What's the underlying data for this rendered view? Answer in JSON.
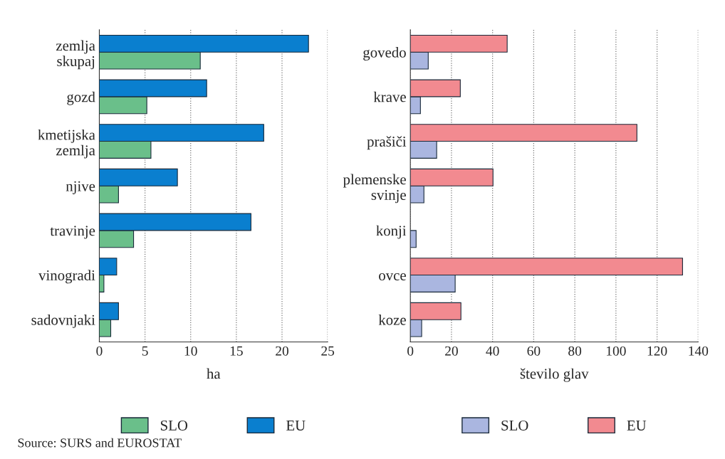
{
  "chart_data": [
    {
      "type": "bar",
      "orientation": "horizontal",
      "categories": [
        "zemlja\nskupaj",
        "gozd",
        "kmetijska\nzemlja",
        "njive",
        "travinje",
        "vinogradi",
        "sadovnjaki"
      ],
      "series": [
        {
          "name": "SLO",
          "color": "#6abf8a",
          "values": [
            11.05,
            5.2,
            5.65,
            2.1,
            3.75,
            0.5,
            1.25
          ]
        },
        {
          "name": "EU",
          "color": "#0a7fcf",
          "values": [
            22.9,
            11.75,
            18.0,
            8.55,
            16.6,
            1.9,
            2.1
          ]
        }
      ],
      "xlim": [
        0,
        25
      ],
      "xticks": [
        0,
        5,
        10,
        15,
        20,
        25
      ],
      "xlabel": "ha",
      "grid": "x",
      "legend": "bottom",
      "annotations": [
        "Source: SURS and EUROSTAT"
      ]
    },
    {
      "type": "bar",
      "orientation": "horizontal",
      "categories": [
        "govedo",
        "krave",
        "prašiči",
        "plemenske\nsvinje",
        "konji",
        "ovce",
        "koze"
      ],
      "series": [
        {
          "name": "SLO",
          "color": "#aab6e0",
          "values": [
            8.7,
            4.9,
            12.8,
            6.6,
            2.8,
            21.8,
            5.5
          ]
        },
        {
          "name": "EU",
          "color": "#f28a90",
          "values": [
            47.1,
            24.3,
            110.2,
            40.2,
            null,
            132.4,
            24.6
          ]
        }
      ],
      "xlim": [
        0,
        140
      ],
      "xticks": [
        0,
        20,
        40,
        60,
        80,
        100,
        120,
        140
      ],
      "xlabel": "število glav",
      "grid": "x",
      "legend": "bottom"
    }
  ]
}
